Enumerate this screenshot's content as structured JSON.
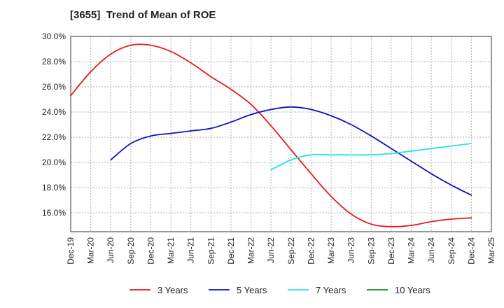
{
  "chart_data": {
    "type": "line",
    "title": "[3655]  Trend of Mean of ROE",
    "x_ticks": [
      "Dec-19",
      "Mar-20",
      "Jun-20",
      "Sep-20",
      "Dec-20",
      "Mar-21",
      "Jun-21",
      "Sep-21",
      "Dec-21",
      "Mar-22",
      "Jun-22",
      "Sep-22",
      "Dec-22",
      "Mar-23",
      "Jun-23",
      "Sep-23",
      "Dec-23",
      "Mar-24",
      "Jun-24",
      "Sep-24",
      "Dec-24",
      "Mar-25"
    ],
    "y_ticks": [
      "16.0%",
      "18.0%",
      "20.0%",
      "22.0%",
      "24.0%",
      "26.0%",
      "28.0%",
      "30.0%"
    ],
    "ylim": [
      14.5,
      30.0
    ],
    "grid": true,
    "legend_position": "bottom",
    "series": [
      {
        "name": "3 Years",
        "color": "#e8191c",
        "points": [
          [
            0,
            25.3
          ],
          [
            1,
            27.2
          ],
          [
            2,
            28.6
          ],
          [
            3,
            29.3
          ],
          [
            4,
            29.3
          ],
          [
            5,
            28.8
          ],
          [
            6,
            27.9
          ],
          [
            7,
            26.8
          ],
          [
            8,
            25.8
          ],
          [
            9,
            24.6
          ],
          [
            10,
            22.9
          ],
          [
            11,
            21.0
          ],
          [
            12,
            19.1
          ],
          [
            13,
            17.3
          ],
          [
            14,
            15.9
          ],
          [
            15,
            15.1
          ],
          [
            16,
            14.9
          ],
          [
            17,
            15.0
          ],
          [
            18,
            15.3
          ],
          [
            19,
            15.5
          ],
          [
            20,
            15.6
          ]
        ]
      },
      {
        "name": "5 Years",
        "color": "#1010c0",
        "points": [
          [
            2,
            20.2
          ],
          [
            3,
            21.5
          ],
          [
            4,
            22.1
          ],
          [
            5,
            22.3
          ],
          [
            6,
            22.5
          ],
          [
            7,
            22.7
          ],
          [
            8,
            23.2
          ],
          [
            9,
            23.8
          ],
          [
            10,
            24.2
          ],
          [
            11,
            24.4
          ],
          [
            12,
            24.2
          ],
          [
            13,
            23.7
          ],
          [
            14,
            23.0
          ],
          [
            15,
            22.1
          ],
          [
            16,
            21.1
          ],
          [
            17,
            20.1
          ],
          [
            18,
            19.1
          ],
          [
            19,
            18.2
          ],
          [
            20,
            17.4
          ]
        ]
      },
      {
        "name": "7 Years",
        "color": "#22e4ea",
        "points": [
          [
            10,
            19.4
          ],
          [
            11,
            20.2
          ],
          [
            12,
            20.6
          ],
          [
            13,
            20.6
          ],
          [
            14,
            20.6
          ],
          [
            15,
            20.6
          ],
          [
            16,
            20.7
          ],
          [
            17,
            20.9
          ],
          [
            18,
            21.1
          ],
          [
            19,
            21.3
          ],
          [
            20,
            21.5
          ]
        ]
      },
      {
        "name": "10 Years",
        "color": "#1a8a1a",
        "points": []
      }
    ]
  }
}
